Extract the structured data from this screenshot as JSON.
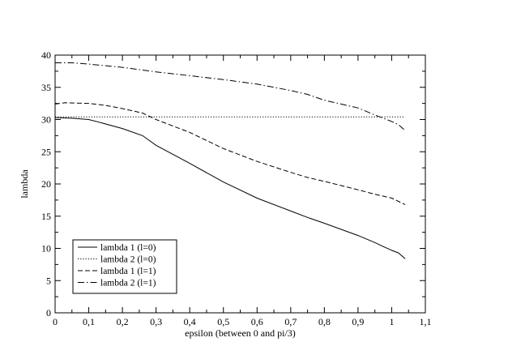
{
  "chart_data": {
    "type": "line",
    "xlabel": "epsilon (between 0 and pi/3)",
    "ylabel": "lambda",
    "xlim": [
      0,
      1.1
    ],
    "ylim": [
      0,
      40
    ],
    "x_ticks": [
      0,
      0.1,
      0.2,
      0.3,
      0.4,
      0.5,
      0.6,
      0.7,
      0.8,
      0.9,
      1,
      1.1
    ],
    "x_tick_labels": [
      "0",
      "0,1",
      "0,2",
      "0,3",
      "0,4",
      "0,5",
      "0,6",
      "0,7",
      "0,8",
      "0,9",
      "1",
      "1,1"
    ],
    "y_ticks": [
      0,
      5,
      10,
      15,
      20,
      25,
      30,
      35,
      40
    ],
    "y_tick_labels": [
      "0",
      "5",
      "10",
      "15",
      "20",
      "25",
      "30",
      "35",
      "40"
    ],
    "grid": false,
    "legend_position": "bottom-left",
    "series": [
      {
        "name": "lambda 1 (l=0)",
        "style": "solid",
        "x": [
          0,
          0.05,
          0.1,
          0.13,
          0.2,
          0.26,
          0.3,
          0.4,
          0.5,
          0.6,
          0.7,
          0.75,
          0.8,
          0.9,
          0.95,
          0.97,
          1.0,
          1.02,
          1.04
        ],
        "y": [
          30.3,
          30.2,
          30.0,
          29.6,
          28.6,
          27.5,
          26.0,
          23.2,
          20.3,
          17.8,
          15.8,
          14.8,
          13.9,
          12.0,
          10.9,
          10.4,
          9.7,
          9.3,
          8.4
        ]
      },
      {
        "name": "lambda 2 (l=0)",
        "style": "dotted",
        "x": [
          0,
          1.04
        ],
        "y": [
          30.4,
          30.4
        ]
      },
      {
        "name": "lambda 1 (l=1)",
        "style": "dashed",
        "x": [
          0,
          0.03,
          0.1,
          0.15,
          0.2,
          0.26,
          0.3,
          0.4,
          0.5,
          0.6,
          0.7,
          0.75,
          0.8,
          0.9,
          0.95,
          1.0,
          1.02,
          1.04
        ],
        "y": [
          32.4,
          32.6,
          32.5,
          32.2,
          31.7,
          31.0,
          30.0,
          28.0,
          25.5,
          23.5,
          21.8,
          21.0,
          20.4,
          19.1,
          18.4,
          17.8,
          17.3,
          16.8
        ]
      },
      {
        "name": "lambda 2 (l=1)",
        "style": "dashdot",
        "x": [
          0,
          0.05,
          0.1,
          0.2,
          0.3,
          0.4,
          0.5,
          0.6,
          0.7,
          0.75,
          0.8,
          0.9,
          0.95,
          1.0,
          1.02,
          1.04
        ],
        "y": [
          38.8,
          38.8,
          38.6,
          38.1,
          37.4,
          36.8,
          36.2,
          35.5,
          34.5,
          33.9,
          33.0,
          31.8,
          30.7,
          29.7,
          29.2,
          28.3
        ]
      }
    ]
  }
}
